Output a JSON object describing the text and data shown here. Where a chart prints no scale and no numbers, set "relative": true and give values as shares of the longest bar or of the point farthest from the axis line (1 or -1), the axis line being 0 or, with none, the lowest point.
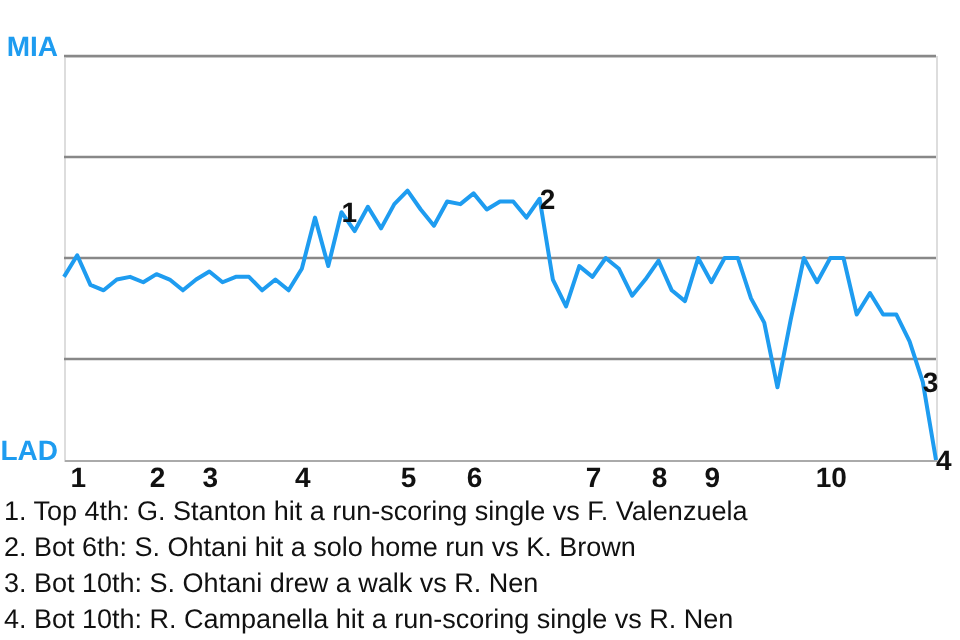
{
  "chart_data": {
    "type": "line",
    "relative": true,
    "categories": [
      null,
      "1",
      null,
      null,
      null,
      null,
      null,
      "2",
      null,
      null,
      null,
      "3",
      null,
      null,
      null,
      null,
      null,
      null,
      "4",
      null,
      null,
      null,
      null,
      null,
      null,
      null,
      "5",
      null,
      null,
      null,
      null,
      "6",
      null,
      null,
      null,
      null,
      null,
      null,
      null,
      null,
      "7",
      null,
      null,
      null,
      null,
      "8",
      null,
      null,
      null,
      "9",
      null,
      null,
      null,
      null,
      null,
      null,
      null,
      null,
      "10",
      null,
      null,
      null,
      null,
      null,
      null,
      null,
      null
    ],
    "series": [
      {
        "color": "#1e9cf0",
        "values": [
          0.68,
          0.76,
          0.65,
          0.63,
          0.67,
          0.68,
          0.66,
          0.69,
          0.67,
          0.63,
          0.67,
          0.7,
          0.66,
          0.68,
          0.68,
          0.63,
          0.67,
          0.63,
          0.71,
          0.9,
          0.72,
          0.92,
          0.85,
          0.94,
          0.86,
          0.95,
          1,
          0.93,
          0.87,
          0.96,
          0.95,
          0.99,
          0.93,
          0.96,
          0.96,
          0.9,
          0.97,
          0.67,
          0.57,
          0.72,
          0.68,
          0.75,
          0.71,
          0.61,
          0.67,
          0.74,
          0.63,
          0.59,
          0.75,
          0.66,
          0.75,
          0.75,
          0.6,
          0.51,
          0.27,
          0.52,
          0.75,
          0.66,
          0.75,
          0.75,
          0.54,
          0.62,
          0.54,
          0.54,
          0.44,
          0.29,
          0
        ]
      }
    ],
    "ref_lines": [
      {
        "axis": "y",
        "value": 0.375,
        "color": "#888888"
      },
      {
        "axis": "y",
        "value": 0.75,
        "color": "#888888"
      },
      {
        "axis": "y",
        "value": 1.125,
        "color": "#888888"
      },
      {
        "axis": "y",
        "value": 1.5,
        "color": "#888888"
      }
    ],
    "annotations": [
      "MIA",
      "LAD",
      {
        "text": "1",
        "y": 0.92
      },
      {
        "text": "2",
        "y": 0.97
      },
      {
        "text": "3",
        "y": 0.29
      },
      {
        "text": "4",
        "y": 0
      },
      "1. Top 4th: G. Stanton hit a run-scoring single vs F. Valenzuela",
      "2. Bot 6th: S. Ohtani hit a solo home run vs K. Brown",
      "3. Bot 10th: S. Ohtani drew a walk vs R. Nen",
      "4. Bot 10th: R. Campanella hit a run-scoring single vs R. Nen"
    ]
  }
}
